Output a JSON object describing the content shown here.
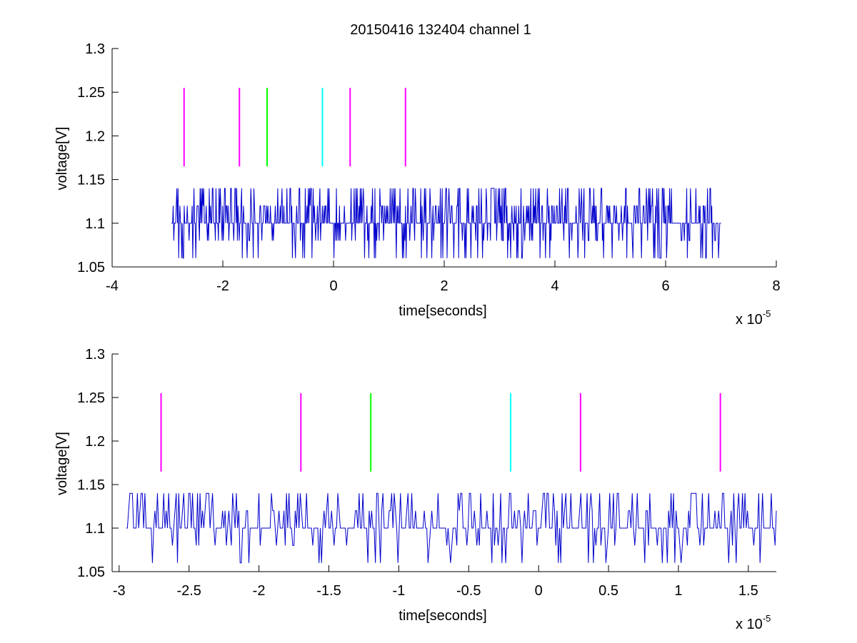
{
  "figure": {
    "title": "20150416 132404 channel 1",
    "colors": {
      "trace": "#0000cc",
      "magenta": "#ff00ff",
      "green": "#00ff00",
      "cyan": "#00ffff",
      "axis": "#000000",
      "background": "#ffffff"
    }
  },
  "chart_data": [
    {
      "type": "line",
      "title": "20150416 132404 channel 1",
      "xlabel": "time[seconds]",
      "ylabel": "voltage[V]",
      "x_multiplier": "x 10",
      "x_exponent": "-5",
      "xlim": [
        -4,
        8
      ],
      "ylim": [
        1.05,
        1.3
      ],
      "xticks": [
        -4,
        -2,
        0,
        2,
        4,
        6,
        8
      ],
      "xtick_labels": [
        "-4",
        "-2",
        "0",
        "2",
        "4",
        "6",
        "8"
      ],
      "yticks": [
        1.05,
        1.1,
        1.15,
        1.2,
        1.25,
        1.3
      ],
      "ytick_labels": [
        "1.05",
        "1.1",
        "1.15",
        "1.2",
        "1.25",
        "1.3"
      ],
      "grid": false,
      "series": [
        {
          "kind": "noise-trace",
          "color": "#0000cc",
          "x_range": [
            -2.93,
            7.0
          ],
          "levels": [
            1.06,
            1.08,
            1.1,
            1.12,
            1.14
          ],
          "baseline": 1.1,
          "samples": 900
        }
      ],
      "markers": [
        {
          "x": -2.7,
          "y_range": [
            1.165,
            1.255
          ],
          "color": "#ff00ff"
        },
        {
          "x": -1.7,
          "y_range": [
            1.165,
            1.255
          ],
          "color": "#ff00ff"
        },
        {
          "x": -1.2,
          "y_range": [
            1.165,
            1.255
          ],
          "color": "#00ff00"
        },
        {
          "x": -0.2,
          "y_range": [
            1.165,
            1.255
          ],
          "color": "#00ffff"
        },
        {
          "x": 0.3,
          "y_range": [
            1.165,
            1.255
          ],
          "color": "#ff00ff"
        },
        {
          "x": 1.3,
          "y_range": [
            1.165,
            1.255
          ],
          "color": "#ff00ff"
        }
      ]
    },
    {
      "type": "line",
      "title": "",
      "xlabel": "time[seconds]",
      "ylabel": "voltage[V]",
      "x_multiplier": "x 10",
      "x_exponent": "-5",
      "xlim": [
        -3.05,
        1.7
      ],
      "ylim": [
        1.05,
        1.3
      ],
      "xticks": [
        -3,
        -2.5,
        -2,
        -1.5,
        -1,
        -0.5,
        0,
        0.5,
        1,
        1.5
      ],
      "xtick_labels": [
        "-3",
        "-2.5",
        "-2",
        "-1.5",
        "-1",
        "-0.5",
        "0",
        "0.5",
        "1",
        "1.5"
      ],
      "yticks": [
        1.05,
        1.1,
        1.15,
        1.2,
        1.25,
        1.3
      ],
      "ytick_labels": [
        "1.05",
        "1.1",
        "1.15",
        "1.2",
        "1.25",
        "1.3"
      ],
      "grid": false,
      "series": [
        {
          "kind": "noise-trace",
          "color": "#0000cc",
          "x_range": [
            -2.95,
            1.7
          ],
          "levels": [
            1.06,
            1.08,
            1.1,
            1.12,
            1.14
          ],
          "baseline": 1.1,
          "samples": 520
        }
      ],
      "markers": [
        {
          "x": -2.7,
          "y_range": [
            1.165,
            1.255
          ],
          "color": "#ff00ff"
        },
        {
          "x": -1.7,
          "y_range": [
            1.165,
            1.255
          ],
          "color": "#ff00ff"
        },
        {
          "x": -1.2,
          "y_range": [
            1.165,
            1.255
          ],
          "color": "#00ff00"
        },
        {
          "x": -0.2,
          "y_range": [
            1.165,
            1.255
          ],
          "color": "#00ffff"
        },
        {
          "x": 0.3,
          "y_range": [
            1.165,
            1.255
          ],
          "color": "#ff00ff"
        },
        {
          "x": 1.3,
          "y_range": [
            1.165,
            1.255
          ],
          "color": "#ff00ff"
        }
      ]
    }
  ]
}
